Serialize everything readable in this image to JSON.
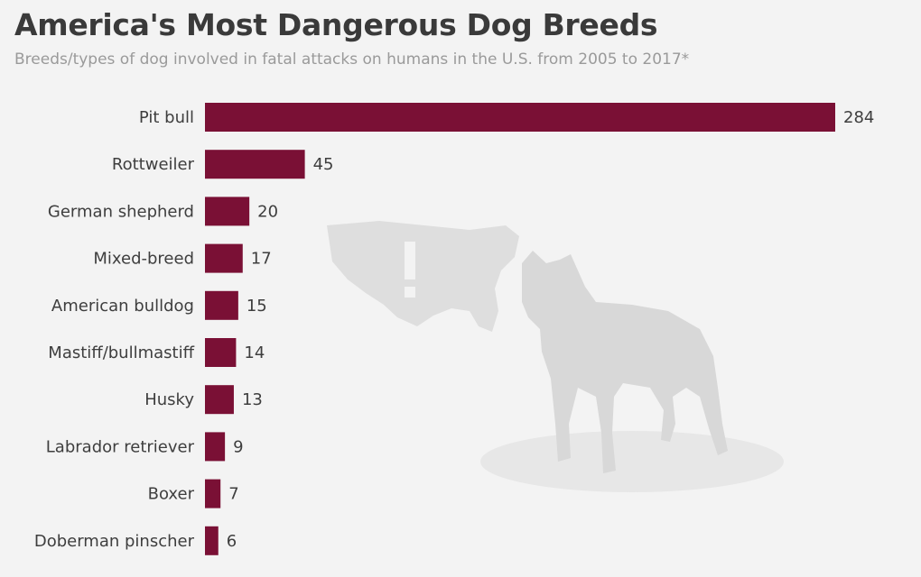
{
  "title": "America's Most Dangerous Dog Breeds",
  "subtitle": "Breeds/types of dog involved in fatal attacks on humans in the U.S. from 2005 to 2017*",
  "colors": {
    "bar": "#7a1035",
    "background": "#f3f3f3",
    "illustration": "#dddddd"
  },
  "chart_data": {
    "type": "bar",
    "orientation": "horizontal",
    "title": "America's Most Dangerous Dog Breeds",
    "subtitle": "Breeds/types of dog involved in fatal attacks on humans in the U.S. from 2005 to 2017*",
    "categories": [
      "Pit bull",
      "Rottweiler",
      "German shepherd",
      "Mixed-breed",
      "American bulldog",
      "Mastiff/bullmastiff",
      "Husky",
      "Labrador retriever",
      "Boxer",
      "Doberman pinscher"
    ],
    "values": [
      284,
      45,
      20,
      17,
      15,
      14,
      13,
      9,
      7,
      6
    ],
    "data_labels": [
      "284",
      "45",
      "20",
      "17",
      "15",
      "14",
      "13",
      "9",
      "7",
      "6"
    ],
    "xlim": [
      0,
      284
    ],
    "grid": false,
    "legend": "none"
  }
}
